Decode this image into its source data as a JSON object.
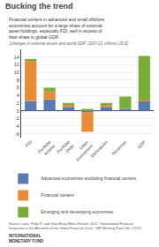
{
  "chart_data": {
    "type": "bar",
    "stacked": true,
    "title": "Bucking the trend",
    "subtitle": "Financial centers in advanced and small offshore\neconomies account for a large share of external\nasset holdings, especially FDI, well in excess of\ntheir share in global GDP.",
    "annotations": [
      "[changes in external assets and world GDP, 2007-13, trillions US $]",
      "Source: Lane, Philip R. and Gian Maria Milesi-Ferretti, 2017. \"International Financial\nIntegration in the Aftermath of the Global Financial Crisis.\" IMF Working Paper No. 17/115.",
      "INTERNATIONAL\nMONETARY FUND"
    ],
    "categories": [
      "FDI",
      "Portfolio\nAssets",
      "Portfolio\nDebt",
      "Other\nInvestment",
      "Derivatives",
      "Reserves",
      "GDP"
    ],
    "series": [
      {
        "name": "Advanced economies excluding financial centers",
        "color": "#5b7ab5",
        "values": [
          2.5,
          3.0,
          1.0,
          -0.3,
          1.0,
          0.5,
          2.5
        ]
      },
      {
        "name": "Financial centers",
        "color": "#e88c3a",
        "values": [
          10.5,
          2.0,
          0.5,
          -5.2,
          0.5,
          0.0,
          0.3
        ]
      },
      {
        "name": "Emerging and developing economies",
        "color": "#7aac3a",
        "values": [
          0.5,
          1.0,
          0.5,
          0.5,
          0.5,
          3.2,
          11.5
        ]
      }
    ],
    "ylim": [
      -7,
      16
    ],
    "yticks": [
      -6,
      -4,
      -2,
      0,
      2,
      4,
      6,
      8,
      10,
      12,
      14
    ],
    "grid": true
  }
}
